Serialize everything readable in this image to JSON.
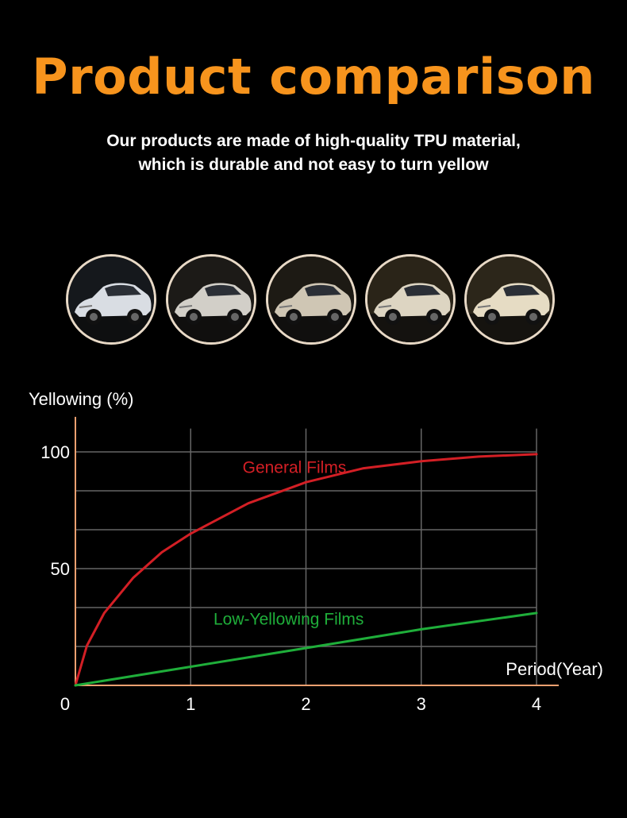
{
  "header": {
    "title": "Product comparison",
    "subtitle_line1": "Our products are made of high-quality TPU material,",
    "subtitle_line2": "which is durable and not easy to turn yellow"
  },
  "photos": {
    "count": 5,
    "tints": [
      "#d9dde3",
      "#d2cfc8",
      "#cfc6b4",
      "#ddd5c2",
      "#e6dcc4"
    ],
    "backgrounds": [
      "#15181c",
      "#1c1a17",
      "#1d1a14",
      "#2a2418",
      "#2c261a"
    ]
  },
  "chart_data": {
    "type": "line",
    "ylabel": "Yellowing (%)",
    "xlabel": "Period(Year)",
    "x_ticks": [
      "0",
      "1",
      "2",
      "3",
      "4"
    ],
    "y_ticks": [
      "50",
      "100"
    ],
    "xlim": [
      0,
      4
    ],
    "ylim": [
      0,
      100
    ],
    "grid": true,
    "series": [
      {
        "name": "General Films",
        "color": "#d31f25",
        "x": [
          0,
          0.1,
          0.25,
          0.5,
          0.75,
          1,
          1.5,
          2,
          2.5,
          3,
          3.5,
          4
        ],
        "y": [
          0,
          17,
          31,
          46,
          57,
          65,
          78,
          87,
          93,
          96,
          98,
          99
        ]
      },
      {
        "name": "Low-Yellowing Films",
        "color": "#1fae3a",
        "x": [
          0,
          1,
          2,
          3,
          4
        ],
        "y": [
          0,
          8,
          16,
          24,
          31
        ]
      }
    ]
  },
  "colors": {
    "accent": "#f7941d",
    "axis": "#f0a070",
    "grid": "#666666"
  }
}
